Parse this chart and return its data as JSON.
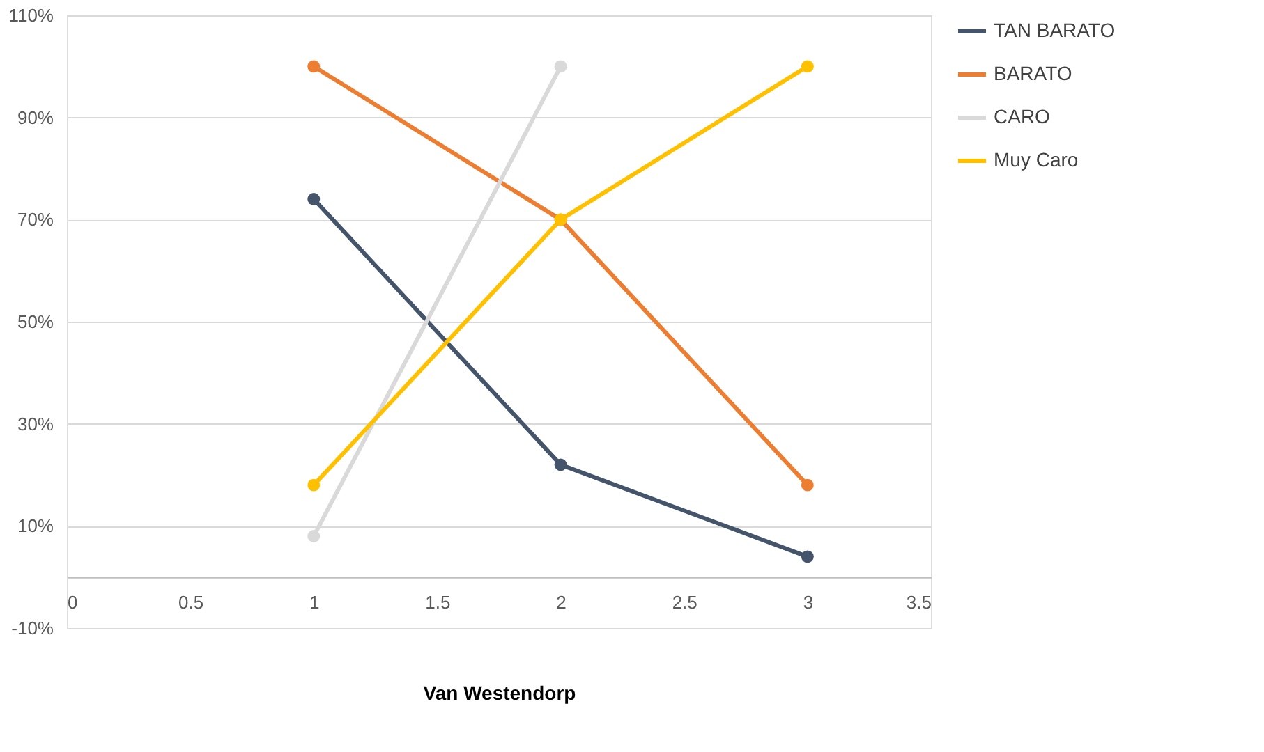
{
  "chart_data": {
    "type": "line",
    "xlabel": "Van Westendorp",
    "xlim": [
      0,
      3.5
    ],
    "xticks": [
      0,
      0.5,
      1,
      1.5,
      2,
      2.5,
      3,
      3.5
    ],
    "ylim": [
      -10,
      110
    ],
    "yticks": [
      {
        "value": -10,
        "label": "-10%"
      },
      {
        "value": 10,
        "label": "10%"
      },
      {
        "value": 30,
        "label": "30%"
      },
      {
        "value": 50,
        "label": "50%"
      },
      {
        "value": 70,
        "label": "70%"
      },
      {
        "value": 90,
        "label": "90%"
      },
      {
        "value": 110,
        "label": "110%"
      }
    ],
    "series": [
      {
        "name": "TAN BARATO",
        "color": "#44546a",
        "x": [
          1,
          2,
          3
        ],
        "values": [
          74,
          22,
          4
        ]
      },
      {
        "name": "BARATO",
        "color": "#ed7d31",
        "x": [
          1,
          2,
          3
        ],
        "values": [
          100,
          70,
          18
        ]
      },
      {
        "name": "CARO",
        "color": "#d9d9d9",
        "x": [
          1,
          2
        ],
        "values": [
          8,
          100
        ]
      },
      {
        "name": "Muy Caro",
        "color": "#ffc000",
        "x": [
          1,
          2,
          3
        ],
        "values": [
          18,
          70,
          100
        ]
      }
    ],
    "grid": "y",
    "legend": "right",
    "marker": "circle",
    "line_style": "solid"
  }
}
